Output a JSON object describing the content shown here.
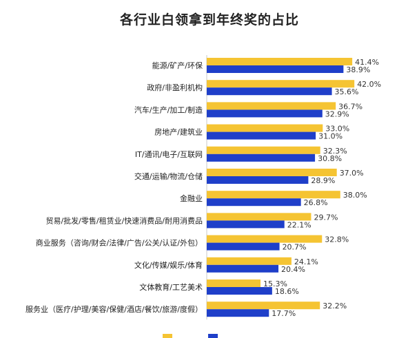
{
  "chart_data": {
    "type": "bar",
    "orientation": "horizontal",
    "title": "各行业白领拿到年终奖的占比",
    "categories": [
      "能源/矿产/环保",
      "政府/非盈利机构",
      "汽车/生产/加工/制造",
      "房地产/建筑业",
      "IT/通讯/电子/互联网",
      "交通/运输/物流/仓储",
      "金融业",
      "贸易/批发/零售/租赁业/快速消费品/耐用消费品",
      "商业服务（咨询/财会/法律/广告/公关/认证/外包）",
      "文化/传媒/娱乐/体育",
      "文体教育/工艺美术",
      "服务业（医疗/护理/美容/保健/酒店/餐饮/旅游/度假）"
    ],
    "series": [
      {
        "color": "#f5c433",
        "values": [
          41.4,
          42.0,
          36.7,
          33.0,
          32.3,
          37.0,
          38.0,
          29.7,
          32.8,
          24.1,
          15.3,
          32.2
        ],
        "labels": [
          "41.4%",
          "42.0%",
          "36.7%",
          "33.0%",
          "32.3%",
          "37.0%",
          "38.0%",
          "29.7%",
          "32.8%",
          "24.1%",
          "15.3%",
          "32.2%"
        ]
      },
      {
        "color": "#1f3fc9",
        "values": [
          38.9,
          35.6,
          32.9,
          31.0,
          30.8,
          28.9,
          26.8,
          22.1,
          20.7,
          20.4,
          18.6,
          17.7
        ],
        "labels": [
          "38.9%",
          "35.6%",
          "32.9%",
          "31.0%",
          "30.8%",
          "28.9%",
          "26.8%",
          "22.1%",
          "20.7%",
          "20.4%",
          "18.6%",
          "17.7%"
        ]
      }
    ],
    "xlim": [
      0,
      50
    ],
    "grid": false,
    "legend_position": "bottom"
  }
}
